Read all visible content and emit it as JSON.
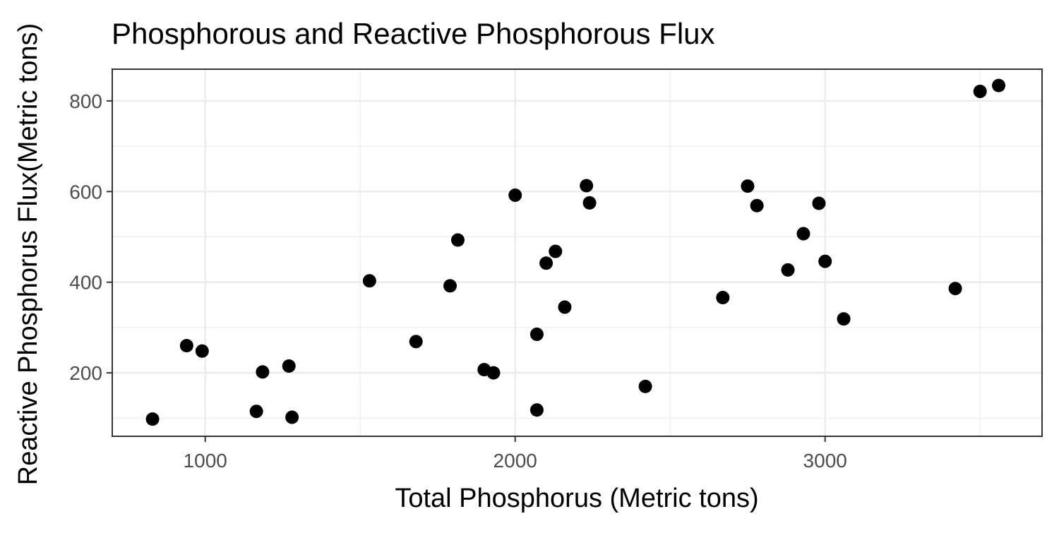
{
  "chart_data": {
    "type": "scatter",
    "title": "Phosphorous and Reactive Phosphorous Flux",
    "xlabel": "Total Phosphorus (Metric tons)",
    "ylabel": "Reactive Phosphorus Flux(Metric tons)",
    "xlim": [
      700,
      3700
    ],
    "ylim": [
      60,
      870
    ],
    "x_ticks": [
      1000,
      2000,
      3000
    ],
    "y_ticks": [
      200,
      400,
      600,
      800
    ],
    "x_tick_labels": [
      "1000",
      "2000",
      "3000"
    ],
    "y_tick_labels": [
      "200",
      "400",
      "600",
      "800"
    ],
    "x_minor_ticks": [
      1500,
      2500,
      3500
    ],
    "y_minor_ticks": [
      100,
      300,
      500,
      700
    ],
    "grid": true,
    "legend": "none",
    "point_color": "#000000",
    "points": [
      {
        "x": 830,
        "y": 98
      },
      {
        "x": 940,
        "y": 260
      },
      {
        "x": 990,
        "y": 248
      },
      {
        "x": 1165,
        "y": 115
      },
      {
        "x": 1185,
        "y": 202
      },
      {
        "x": 1270,
        "y": 215
      },
      {
        "x": 1280,
        "y": 102
      },
      {
        "x": 1530,
        "y": 403
      },
      {
        "x": 1680,
        "y": 269
      },
      {
        "x": 1790,
        "y": 392
      },
      {
        "x": 1815,
        "y": 493
      },
      {
        "x": 1900,
        "y": 207
      },
      {
        "x": 1930,
        "y": 200
      },
      {
        "x": 2000,
        "y": 592
      },
      {
        "x": 2070,
        "y": 285
      },
      {
        "x": 2070,
        "y": 118
      },
      {
        "x": 2100,
        "y": 442
      },
      {
        "x": 2130,
        "y": 468
      },
      {
        "x": 2160,
        "y": 345
      },
      {
        "x": 2230,
        "y": 613
      },
      {
        "x": 2240,
        "y": 575
      },
      {
        "x": 2420,
        "y": 170
      },
      {
        "x": 2670,
        "y": 366
      },
      {
        "x": 2750,
        "y": 612
      },
      {
        "x": 2780,
        "y": 569
      },
      {
        "x": 2880,
        "y": 427
      },
      {
        "x": 2930,
        "y": 507
      },
      {
        "x": 2980,
        "y": 574
      },
      {
        "x": 3000,
        "y": 446
      },
      {
        "x": 3060,
        "y": 319
      },
      {
        "x": 3420,
        "y": 386
      },
      {
        "x": 3500,
        "y": 821
      },
      {
        "x": 3560,
        "y": 834
      }
    ]
  }
}
